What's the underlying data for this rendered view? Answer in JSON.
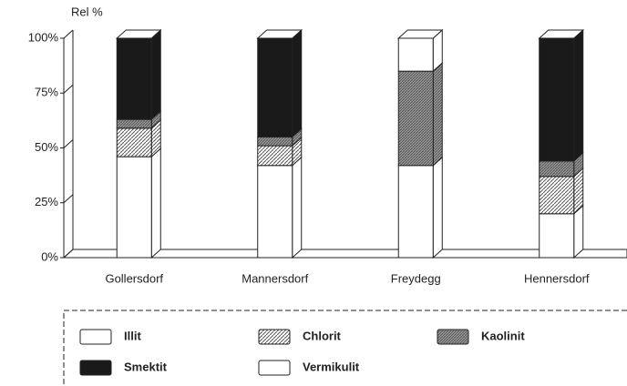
{
  "chart_data": {
    "type": "stacked-bar-3d",
    "axis_label": "Rel %",
    "categories": [
      "Gollersdorf",
      "Mannersdorf",
      "Freydegg",
      "Hennersdorf"
    ],
    "series": [
      {
        "name": "Illit",
        "color": "#ffffff",
        "values": [
          46,
          42,
          42,
          20
        ]
      },
      {
        "name": "Chlorit",
        "color": "#555555",
        "hatch": "diagonal",
        "values": [
          13,
          9,
          0,
          17
        ]
      },
      {
        "name": "Kaolinit",
        "color": "#777777",
        "hatch": "dense",
        "values": [
          4,
          4,
          43,
          7
        ]
      },
      {
        "name": "Smektit",
        "color": "#1a1a1a",
        "values": [
          37,
          45,
          0,
          56
        ]
      },
      {
        "name": "Vermikulit",
        "color": "#ffffff",
        "values": [
          0,
          0,
          15,
          0
        ]
      }
    ],
    "ylim": [
      0,
      100
    ],
    "yticks": [
      {
        "value": 0,
        "label": "0%"
      },
      {
        "value": 25,
        "label": "25%"
      },
      {
        "value": 50,
        "label": "50%"
      },
      {
        "value": 75,
        "label": "75%"
      },
      {
        "value": 100,
        "label": "100%"
      }
    ]
  }
}
